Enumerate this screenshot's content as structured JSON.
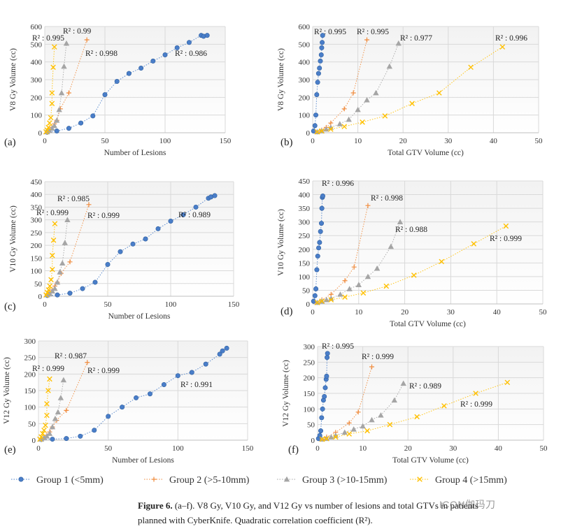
{
  "colors": {
    "group1": "#4a7ec9",
    "group2": "#f08a3b",
    "group3": "#a5a5a5",
    "group4": "#ffc000",
    "grid": "#d9d9d9",
    "plot_bg_top": "#f4f4f4"
  },
  "panel_labels": [
    "(a)",
    "(b)",
    "(c)",
    "(d)",
    "(e)",
    "(f)"
  ],
  "legend": {
    "items": [
      {
        "label": "Group 1 (<5mm)",
        "marker": "circle",
        "color": "#4a7ec9"
      },
      {
        "label": "Group 2 (>5-10mm)",
        "marker": "plus",
        "color": "#f08a3b"
      },
      {
        "label": "Group 3 (>10-15mm)",
        "marker": "triangle",
        "color": "#a5a5a5"
      },
      {
        "label": "Group 4 (>15mm)",
        "marker": "cross",
        "color": "#ffc000"
      }
    ]
  },
  "caption": {
    "bold": "Figure 6.",
    "text_line1": " (a–f). V8 Gy, V10 Gy, and V12 Gy vs number of lesions and total GTVs in patients",
    "text_line2": "planned with CyberKnife. Quadratic correlation coefficient (R²)."
  },
  "watermark": "ICON伽玛刀",
  "chart_data": [
    {
      "type": "scatter",
      "panel": "(a)",
      "xlabel": "Number of Lesions",
      "ylabel": "V8 Gy Volume (cc)",
      "xlim": [
        0,
        150
      ],
      "ylim": [
        0,
        600
      ],
      "xticks": [
        0,
        50,
        100,
        150
      ],
      "yticks": [
        0,
        100,
        200,
        300,
        400,
        500,
        600
      ],
      "series": [
        {
          "name": "Group 1 (<5mm)",
          "x": [
            2,
            10,
            20,
            30,
            40,
            50,
            60,
            70,
            80,
            90,
            100,
            110,
            120,
            130,
            132,
            135
          ],
          "y": [
            3,
            10,
            25,
            55,
            95,
            215,
            290,
            335,
            365,
            405,
            440,
            480,
            510,
            550,
            545,
            550
          ]
        },
        {
          "name": "Group 2 (>5-10mm)",
          "x": [
            2,
            4,
            6,
            8,
            10,
            13,
            20,
            35
          ],
          "y": [
            5,
            15,
            30,
            50,
            70,
            135,
            225,
            525
          ]
        },
        {
          "name": "Group 3 (>10-15mm)",
          "x": [
            2,
            4,
            6,
            8,
            10,
            12,
            14,
            16,
            18
          ],
          "y": [
            5,
            12,
            25,
            40,
            70,
            130,
            225,
            375,
            505
          ]
        },
        {
          "name": "Group 4 (>15mm)",
          "x": [
            1,
            2,
            3,
            4,
            5,
            6,
            6,
            7,
            8
          ],
          "y": [
            5,
            15,
            30,
            55,
            85,
            165,
            225,
            370,
            485
          ]
        }
      ],
      "annotations": [
        {
          "text": "R² : 0.995"
        },
        {
          "text": "R² : 0.99"
        },
        {
          "text": "R² : 0.998"
        },
        {
          "text": "R² : 0.986"
        }
      ]
    },
    {
      "type": "scatter",
      "panel": "(b)",
      "xlabel": "Total GTV Volume (cc)",
      "ylabel": "V8 Gy Volume (cc)",
      "xlim": [
        0,
        50
      ],
      "ylim": [
        0,
        600
      ],
      "xticks": [
        0,
        10,
        20,
        30,
        40,
        50
      ],
      "yticks": [
        0,
        100,
        200,
        300,
        400,
        500,
        600
      ],
      "series": [
        {
          "name": "Group 1 (<5mm)",
          "x": [
            0.2,
            0.5,
            0.7,
            0.9,
            1.1,
            1.3,
            1.5,
            1.7,
            1.9,
            2.0,
            2.1,
            2.2
          ],
          "y": [
            10,
            40,
            100,
            215,
            285,
            335,
            365,
            405,
            440,
            480,
            510,
            550
          ]
        },
        {
          "name": "Group 2 (>5-10mm)",
          "x": [
            1,
            2,
            3,
            4,
            7,
            9,
            12
          ],
          "y": [
            5,
            15,
            30,
            55,
            135,
            225,
            525
          ]
        },
        {
          "name": "Group 3 (>10-15mm)",
          "x": [
            1,
            2,
            3,
            4,
            6,
            8,
            10,
            12,
            14,
            17,
            19
          ],
          "y": [
            5,
            10,
            20,
            30,
            50,
            75,
            130,
            185,
            225,
            375,
            505
          ]
        },
        {
          "name": "Group 4 (>15mm)",
          "x": [
            1,
            2,
            4,
            7,
            11,
            16,
            22,
            28,
            35,
            42
          ],
          "y": [
            5,
            10,
            20,
            35,
            60,
            95,
            165,
            225,
            370,
            485
          ]
        }
      ],
      "annotations": [
        {
          "text": "R² : 0.995"
        },
        {
          "text": "R² : 0.995"
        },
        {
          "text": "R² : 0.977"
        },
        {
          "text": "R² : 0.996"
        }
      ]
    },
    {
      "type": "scatter",
      "panel": "(c)",
      "xlabel": "Number of Lesions",
      "ylabel": "V10 Gy Volume (cc)",
      "xlim": [
        0,
        150
      ],
      "ylim": [
        0,
        450
      ],
      "xticks": [
        0,
        50,
        100,
        150
      ],
      "yticks": [
        0,
        50,
        100,
        150,
        200,
        250,
        300,
        350,
        400,
        450
      ],
      "series": [
        {
          "name": "Group 1 (<5mm)",
          "x": [
            2,
            10,
            20,
            30,
            40,
            50,
            60,
            70,
            80,
            90,
            100,
            110,
            120,
            130,
            132,
            135
          ],
          "y": [
            3,
            5,
            12,
            30,
            55,
            125,
            175,
            205,
            225,
            265,
            295,
            320,
            350,
            385,
            390,
            395
          ]
        },
        {
          "name": "Group 2 (>5-10mm)",
          "x": [
            2,
            4,
            6,
            8,
            10,
            13,
            20,
            35
          ],
          "y": [
            5,
            15,
            25,
            40,
            55,
            90,
            135,
            360
          ]
        },
        {
          "name": "Group 3 (>10-15mm)",
          "x": [
            2,
            4,
            6,
            8,
            10,
            12,
            14,
            16,
            18
          ],
          "y": [
            5,
            10,
            20,
            30,
            55,
            95,
            130,
            210,
            300
          ]
        },
        {
          "name": "Group 4 (>15mm)",
          "x": [
            1,
            2,
            3,
            4,
            5,
            6,
            6,
            7,
            8
          ],
          "y": [
            5,
            15,
            25,
            40,
            65,
            105,
            160,
            220,
            285
          ]
        }
      ],
      "annotations": [
        {
          "text": "R² : 0.985"
        },
        {
          "text": "R² : 0.999"
        },
        {
          "text": "R² : 0.999"
        },
        {
          "text": "R² : 0.989"
        }
      ]
    },
    {
      "type": "scatter",
      "panel": "(d)",
      "xlabel": "Total GTV Volume (cc)",
      "ylabel": "V10 Gy Volume (cc)",
      "xlim": [
        0,
        50
      ],
      "ylim": [
        0,
        450
      ],
      "xticks": [
        0,
        10,
        20,
        30,
        40,
        50
      ],
      "yticks": [
        0,
        50,
        100,
        150,
        200,
        250,
        300,
        350,
        400,
        450
      ],
      "series": [
        {
          "name": "Group 1 (<5mm)",
          "x": [
            0.2,
            0.5,
            0.7,
            0.9,
            1.1,
            1.3,
            1.5,
            1.7,
            1.9,
            2.0,
            2.1,
            2.2
          ],
          "y": [
            10,
            30,
            55,
            125,
            175,
            205,
            225,
            265,
            295,
            350,
            390,
            395
          ]
        },
        {
          "name": "Group 2 (>5-10mm)",
          "x": [
            1,
            2,
            4,
            7,
            9,
            12
          ],
          "y": [
            5,
            15,
            35,
            85,
            135,
            360
          ]
        },
        {
          "name": "Group 3 (>10-15mm)",
          "x": [
            1,
            2,
            3,
            4,
            6,
            8,
            10,
            12,
            14,
            17,
            19
          ],
          "y": [
            5,
            10,
            15,
            20,
            35,
            55,
            70,
            100,
            130,
            210,
            300
          ]
        },
        {
          "name": "Group 4 (>15mm)",
          "x": [
            1,
            2,
            4,
            7,
            11,
            16,
            22,
            28,
            35,
            42
          ],
          "y": [
            5,
            10,
            15,
            25,
            40,
            65,
            105,
            155,
            220,
            285
          ]
        }
      ],
      "annotations": [
        {
          "text": "R² : 0.996"
        },
        {
          "text": "R² : 0.998"
        },
        {
          "text": "R² : 0.988"
        },
        {
          "text": "R² : 0.999"
        }
      ]
    },
    {
      "type": "scatter",
      "panel": "(e)",
      "xlabel": "Number of Lesions",
      "ylabel": "V12 Gy Volume (cc)",
      "xlim": [
        0,
        150
      ],
      "ylim": [
        0,
        300
      ],
      "xticks": [
        0,
        50,
        100,
        150
      ],
      "yticks": [
        0,
        50,
        100,
        150,
        200,
        250,
        300
      ],
      "series": [
        {
          "name": "Group 1 (<5mm)",
          "x": [
            2,
            10,
            20,
            30,
            40,
            50,
            60,
            70,
            80,
            90,
            100,
            110,
            120,
            130,
            132,
            135
          ],
          "y": [
            2,
            3,
            5,
            12,
            30,
            72,
            100,
            128,
            140,
            168,
            195,
            205,
            230,
            260,
            270,
            278
          ]
        },
        {
          "name": "Group 2 (>5-10mm)",
          "x": [
            2,
            4,
            6,
            8,
            10,
            13,
            20,
            35
          ],
          "y": [
            3,
            8,
            15,
            25,
            40,
            60,
            90,
            235
          ]
        },
        {
          "name": "Group 3 (>10-15mm)",
          "x": [
            2,
            4,
            6,
            8,
            10,
            12,
            14,
            16,
            18
          ],
          "y": [
            3,
            8,
            12,
            20,
            40,
            65,
            85,
            128,
            182
          ]
        },
        {
          "name": "Group 4 (>15mm)",
          "x": [
            1,
            2,
            3,
            4,
            5,
            6,
            6,
            7,
            8
          ],
          "y": [
            3,
            10,
            20,
            30,
            45,
            75,
            110,
            150,
            185
          ]
        }
      ],
      "annotations": [
        {
          "text": "R² : 0.987"
        },
        {
          "text": "R² : 0.999"
        },
        {
          "text": "R² : 0.999"
        },
        {
          "text": "R² : 0.991"
        }
      ]
    },
    {
      "type": "scatter",
      "panel": "(f)",
      "xlabel": "Total GTV Volume (cc)",
      "ylabel": "V12 Gy Volume (cc)",
      "xlim": [
        0,
        50
      ],
      "ylim": [
        0,
        300
      ],
      "xticks": [
        0,
        10,
        20,
        30,
        40,
        50
      ],
      "yticks": [
        0,
        50,
        100,
        150,
        200,
        250,
        300
      ],
      "series": [
        {
          "name": "Group 1 (<5mm)",
          "x": [
            0.2,
            0.5,
            0.7,
            0.9,
            1.1,
            1.3,
            1.5,
            1.7,
            1.9,
            2.0,
            2.1,
            2.2
          ],
          "y": [
            5,
            15,
            30,
            72,
            100,
            128,
            140,
            168,
            195,
            205,
            265,
            278
          ]
        },
        {
          "name": "Group 2 (>5-10mm)",
          "x": [
            1,
            2,
            4,
            7,
            9,
            12
          ],
          "y": [
            3,
            10,
            25,
            55,
            90,
            235
          ]
        },
        {
          "name": "Group 3 (>10-15mm)",
          "x": [
            1,
            2,
            3,
            4,
            6,
            8,
            10,
            12,
            14,
            17,
            19
          ],
          "y": [
            3,
            5,
            10,
            15,
            25,
            35,
            45,
            65,
            80,
            128,
            182
          ]
        },
        {
          "name": "Group 4 (>15mm)",
          "x": [
            1,
            2,
            4,
            7,
            11,
            16,
            22,
            28,
            35,
            42
          ],
          "y": [
            3,
            5,
            10,
            20,
            30,
            50,
            75,
            110,
            150,
            185
          ]
        }
      ],
      "annotations": [
        {
          "text": "R² : 0.995"
        },
        {
          "text": "R² : 0.999"
        },
        {
          "text": "R² : 0.989"
        },
        {
          "text": "R² : 0.999"
        }
      ]
    }
  ]
}
